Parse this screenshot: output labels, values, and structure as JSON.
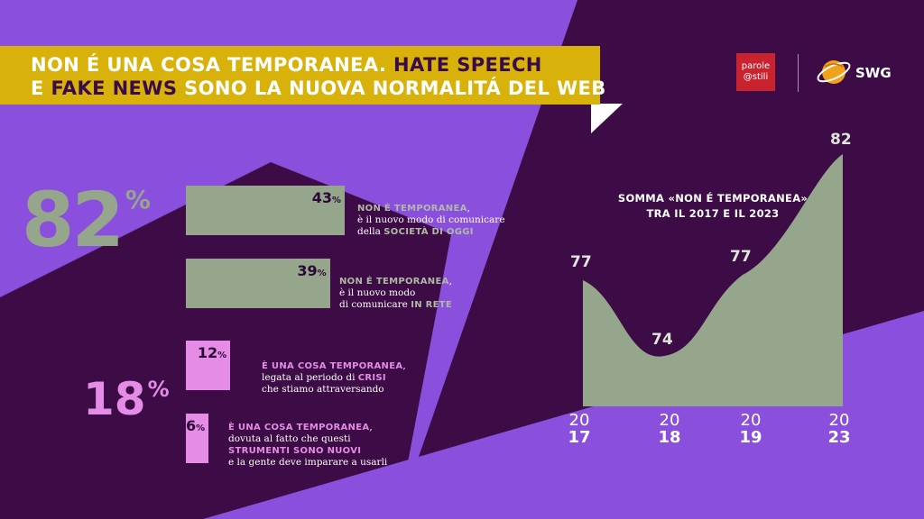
{
  "header": {
    "title_line1_part1": "NON É UNA COSA TEMPORANEA.",
    "title_line1_part2": "HATE SPEECH",
    "title_line2_part1": "E",
    "title_line2_part2": "FAKE NEWS",
    "title_line2_part3": "SONO LA NUOVA NORMALITÁ DEL WEB"
  },
  "logos": {
    "parole_line1": "parole",
    "parole_line2": "@stili",
    "swg": "SWG"
  },
  "colors": {
    "purple": "#8a4fdc",
    "dark": "#3d0b45",
    "gold": "#d8b10a",
    "sage": "#95a68c",
    "pink": "#e48ce6"
  },
  "summary": {
    "big_not_temporary": "82",
    "big_temporary": "18",
    "percent_sign": "%"
  },
  "bars": [
    {
      "value": "43",
      "pct": "%",
      "label_head": "NON É TEMPORANEA",
      "label_after_head": ",",
      "line2": "è il nuovo modo di comunicare",
      "line3_pre": "della",
      "line3_emph": "SOCIETÀ DI OGGI",
      "line3_post": ""
    },
    {
      "value": "39",
      "pct": "%",
      "label_head": "NON É TEMPORANEA",
      "label_after_head": ",",
      "line2": "è il nuovo modo",
      "line3_pre": "di comunicare",
      "line3_emph": "IN RETE",
      "line3_post": ""
    },
    {
      "value": "12",
      "pct": "%",
      "label_head": "È UNA COSA TEMPORANEA",
      "label_after_head": ",",
      "line2_pre": "legata al periodo di",
      "line2_emph": "CRISI",
      "line3": "che stiamo attraversando"
    },
    {
      "value": "6",
      "pct": "%",
      "label_head": "È UNA COSA TEMPORANEA",
      "label_after_head": ",",
      "line2": "dovuta al fatto che questi",
      "line3_emph": "STRUMENTI SONO NUOVI",
      "line4": "e la gente deve imparare a usarli"
    }
  ],
  "chart_data": [
    {
      "type": "bar",
      "categories": [
        "NON É TEMPORANEA, è il nuovo modo di comunicare della SOCIETÀ DI OGGI",
        "NON É TEMPORANEA, è il nuovo modo di comunicare IN RETE",
        "È UNA COSA TEMPORANEA, legata al periodo di CRISI che stiamo attraversando",
        "È UNA COSA TEMPORANEA, dovuta al fatto che questi STRUMENTI SONO NUOVI e la gente deve imparare a usarli"
      ],
      "values": [
        43,
        39,
        12,
        6
      ],
      "orientation": "horizontal",
      "xlim": [
        0,
        43
      ]
    },
    {
      "type": "area",
      "title_line1": "SOMMA «NON É TEMPORANEA»",
      "title_line2": "TRA IL 2017 E IL 2023",
      "x": [
        "2017",
        "2018",
        "2019",
        "2023"
      ],
      "x_top": [
        "20",
        "20",
        "20",
        "20"
      ],
      "x_bottom": [
        "17",
        "18",
        "19",
        "23"
      ],
      "values": [
        77,
        74,
        77,
        82
      ],
      "ylim": [
        0,
        82
      ]
    }
  ]
}
